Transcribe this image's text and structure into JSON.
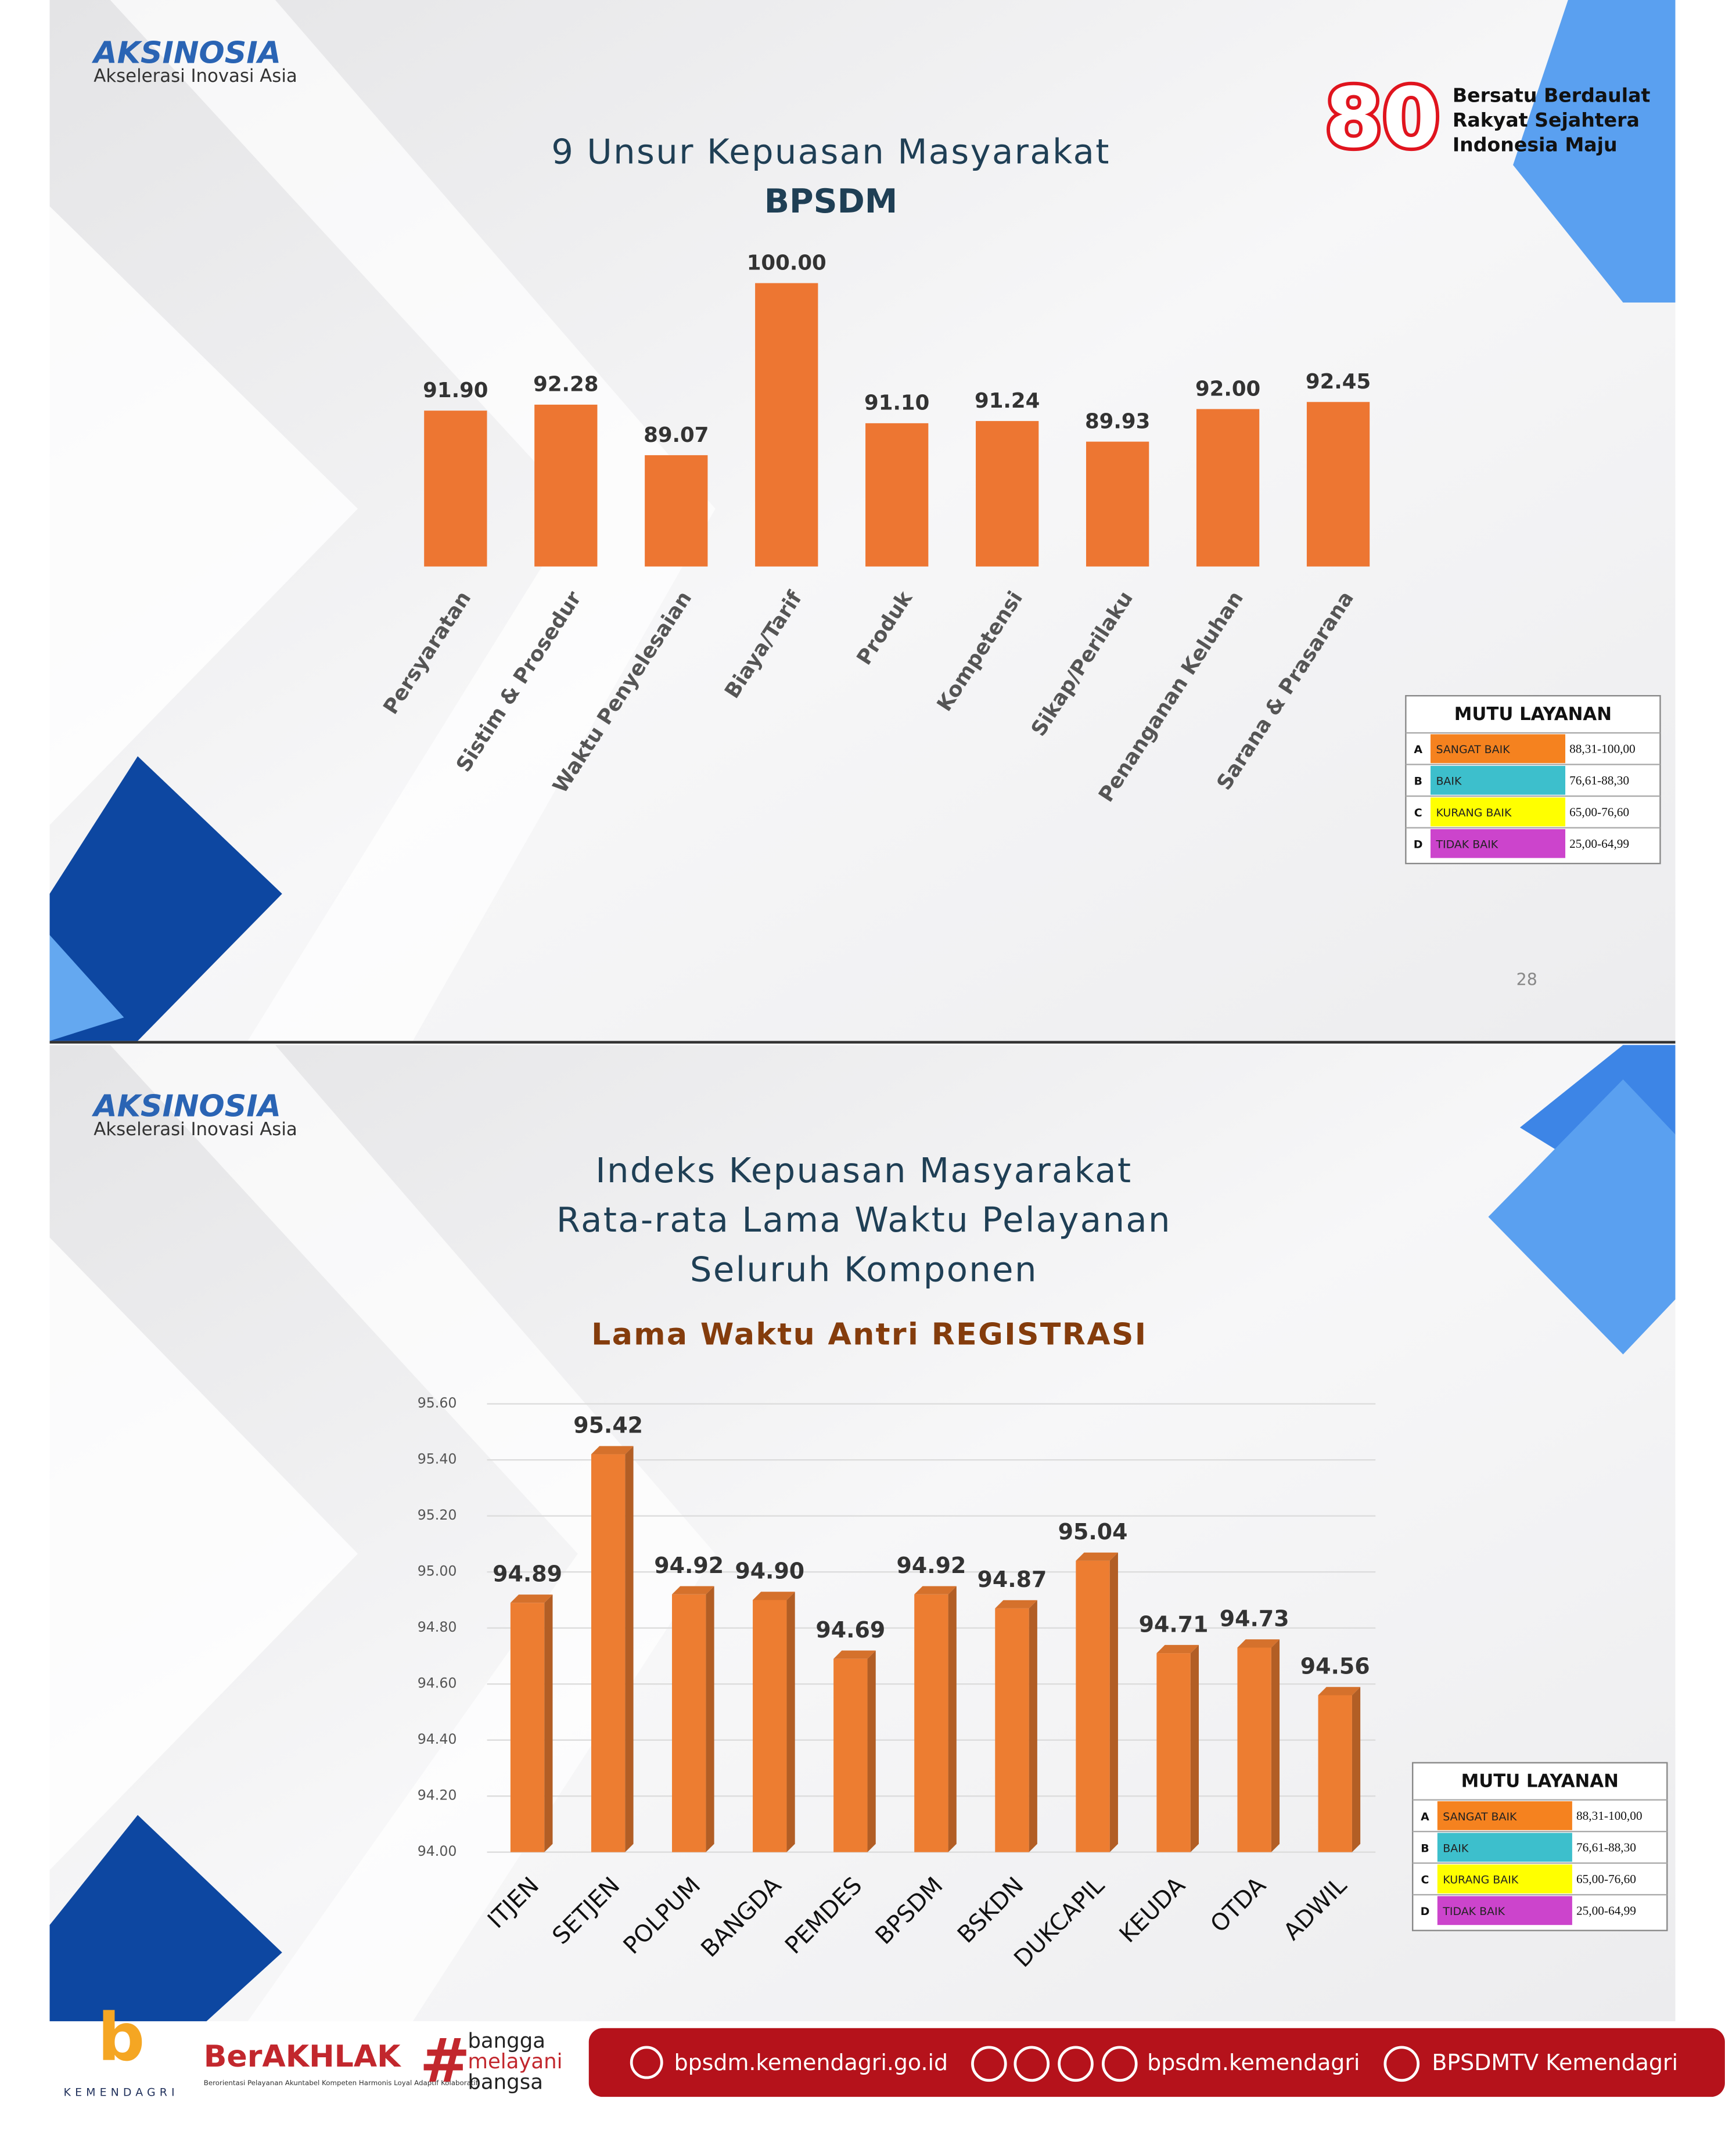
{
  "branding": {
    "logo": "AKSINOSIA",
    "logo_sub": "Akselerasi Inovasi Asia",
    "badge": "80",
    "badge_text": [
      "Bersatu Berdaulat",
      "Rakyat Sejahtera",
      "Indonesia Maju"
    ]
  },
  "chart_data": [
    {
      "type": "bar",
      "title": "9 Unsur Kepuasan Masyarakat",
      "subtitle": "BPSDM",
      "color": "#ed7632",
      "categories": [
        "Persyaratan",
        "Sistim & Prosedur",
        "Waktu Penyelesaian",
        "Biaya/Tarif",
        "Produk",
        "Kompetensi",
        "Sikap/Perilaku",
        "Penanganan Keluhan",
        "Sarana & Prasarana"
      ],
      "values": [
        91.9,
        92.28,
        89.07,
        100,
        91.1,
        91.24,
        89.93,
        92,
        92.45
      ],
      "value_labels": [
        "91.90",
        "92.28",
        "89.07",
        "100.00",
        "91.10",
        "91.24",
        "89.93",
        "92.00",
        "92.45"
      ],
      "ylim": [
        82,
        102
      ]
    },
    {
      "type": "bar",
      "title": [
        "Indeks Kepuasan Masyarakat",
        "Rata-rata Lama Waktu Pelayanan",
        "Seluruh Komponen"
      ],
      "subtitle": "Lama Waktu Antri REGISTRASI",
      "color": "#ed7d31",
      "categories": [
        "ITJEN",
        "SETJEN",
        "POLPUM",
        "BANGDA",
        "PEMDES",
        "BPSDM",
        "BSKDN",
        "DUKCAPIL",
        "KEUDA",
        "OTDA",
        "ADWIL"
      ],
      "values": [
        94.89,
        95.42,
        94.92,
        94.9,
        94.69,
        94.92,
        94.87,
        95.04,
        94.71,
        94.73,
        94.56
      ],
      "value_labels": [
        "94.89",
        "95.42",
        "94.92",
        "94.90",
        "94.69",
        "94.92",
        "94.87",
        "95.04",
        "94.71",
        "94.73",
        "94.56"
      ],
      "ylim": [
        94,
        95.6
      ],
      "yticks": [
        {
          "value": 94,
          "label": "94.00"
        },
        {
          "value": 94.2,
          "label": "94.20"
        },
        {
          "value": 94.4,
          "label": "94.40"
        },
        {
          "value": 94.6,
          "label": "94.60"
        },
        {
          "value": 94.8,
          "label": "94.80"
        },
        {
          "value": 95,
          "label": "95.00"
        },
        {
          "value": 95.2,
          "label": "95.20"
        },
        {
          "value": 95.4,
          "label": "95.40"
        },
        {
          "value": 95.6,
          "label": "95.60"
        }
      ],
      "grid": true
    }
  ],
  "legend_table": {
    "title": "MUTU LAYANAN",
    "rows": [
      [
        "A",
        "SANGAT BAIK",
        "88,31-100,00"
      ],
      [
        "B",
        "BAIK",
        "76,61-88,30"
      ],
      [
        "C",
        "KURANG BAIK",
        "65,00-76,60"
      ],
      [
        "D",
        "TIDAK BAIK",
        "25,00-64,99"
      ]
    ],
    "row_colors": [
      "#f5821f",
      "#3dbfcc",
      "#ffff00",
      "#cc44cc"
    ]
  },
  "page_number": "28",
  "footer": {
    "org": "KEMENDAGRI",
    "berakhlak": "BerAKHLAK",
    "berakhlak_sub": "Berorientasi Pelayanan Akuntabel Kompeten Harmonis Loyal Adaptif Kolaboratif",
    "hashtag": [
      "bangga",
      "melayani",
      "bangsa"
    ],
    "website": "bpsdm.kemendagri.go.id",
    "social": "bpsdm.kemendagri",
    "youtube": "BPSDMTV Kemendagri"
  }
}
